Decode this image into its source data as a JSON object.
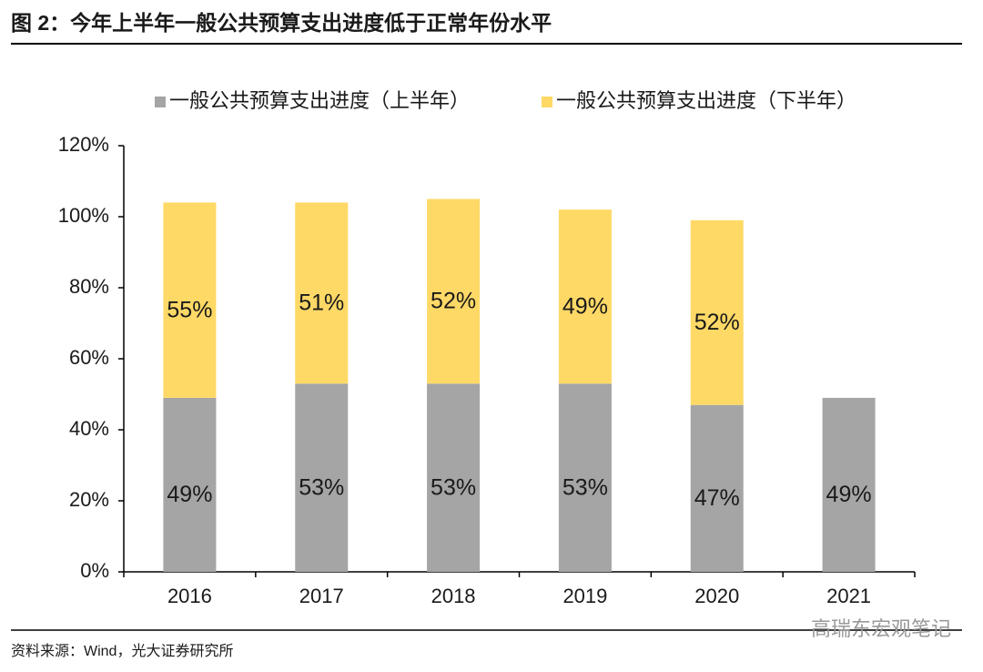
{
  "chart_data": {
    "type": "stacked_bar",
    "title": "图 2：今年上半年一般公共预算支出进度低于正常年份水平",
    "categories": [
      "2016",
      "2017",
      "2018",
      "2019",
      "2020",
      "2021"
    ],
    "series": [
      {
        "name": "一般公共预算支出进度（上半年）",
        "color": "#a5a5a5",
        "values": [
          49,
          53,
          53,
          53,
          47,
          49
        ],
        "value_labels": [
          "49%",
          "53%",
          "53%",
          "53%",
          "47%",
          "49%"
        ]
      },
      {
        "name": "一般公共预算支出进度（下半年）",
        "color": "#ffd966",
        "values": [
          55,
          51,
          52,
          49,
          52,
          null
        ],
        "value_labels": [
          "55%",
          "51%",
          "52%",
          "49%",
          "52%",
          null
        ]
      }
    ],
    "ylim": [
      0,
      120
    ],
    "yticks": [
      {
        "value": 0,
        "label": "0%"
      },
      {
        "value": 20,
        "label": "20%"
      },
      {
        "value": 40,
        "label": "40%"
      },
      {
        "value": 60,
        "label": "60%"
      },
      {
        "value": 80,
        "label": "80%"
      },
      {
        "value": 100,
        "label": "100%"
      },
      {
        "value": 120,
        "label": "120%"
      }
    ],
    "grid": false,
    "legend": "top",
    "source": "资料来源：Wind，光大证券研究所",
    "watermark": "高瑞东宏观笔记"
  }
}
